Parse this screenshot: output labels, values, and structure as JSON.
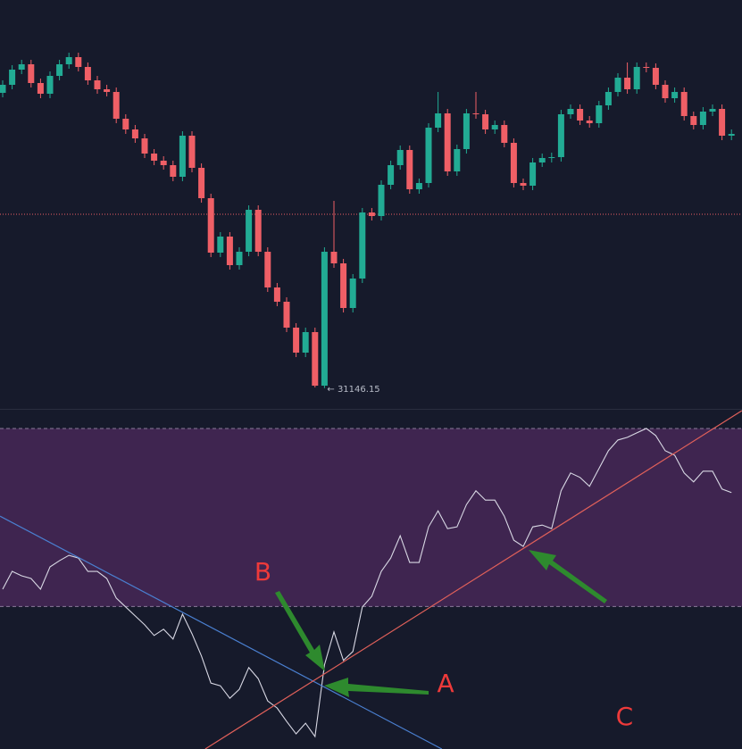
{
  "chart_data": [
    {
      "type": "candlestick",
      "up_color": "#22ab94",
      "down_color": "#ef5f66",
      "ylim": [
        31030,
        33320
      ],
      "price_line": 32120,
      "price_line_color": "#ef5f66",
      "low_label": "← 31146.15",
      "low_index": 34,
      "open": [
        32800,
        32845,
        32930,
        32960,
        32855,
        32795,
        32895,
        32960,
        33000,
        32945,
        32870,
        32820,
        32805,
        32655,
        32595,
        32545,
        32460,
        32420,
        32395,
        32330,
        32560,
        32380,
        32210,
        31905,
        31995,
        31835,
        31910,
        32145,
        31910,
        31710,
        31630,
        31485,
        31345,
        31460,
        31160,
        31910,
        31845,
        31595,
        31760,
        32130,
        32110,
        32285,
        32395,
        32480,
        32260,
        32295,
        32605,
        32685,
        32360,
        32485,
        32685,
        32680,
        32595,
        32620,
        32520,
        32295,
        32280,
        32410,
        32435,
        32440,
        32680,
        32710,
        32645,
        32630,
        32730,
        32805,
        32885,
        32820,
        32945,
        32940,
        32845,
        32770,
        32805,
        32670,
        32620,
        32695,
        32710,
        32560
      ],
      "high": [
        32870,
        32955,
        32985,
        32985,
        32880,
        32920,
        32985,
        33025,
        33025,
        32970,
        32895,
        32845,
        32830,
        32680,
        32620,
        32570,
        32485,
        32445,
        32420,
        32585,
        32585,
        32405,
        32235,
        32020,
        32020,
        31935,
        32170,
        32170,
        31935,
        31735,
        31655,
        31510,
        31485,
        31485,
        31935,
        32195,
        31870,
        31785,
        32155,
        32155,
        32310,
        32420,
        32505,
        32505,
        32320,
        32630,
        32805,
        32710,
        32510,
        32710,
        32805,
        32705,
        32645,
        32645,
        32545,
        32320,
        32435,
        32460,
        32465,
        32705,
        32735,
        32735,
        32670,
        32755,
        32830,
        32910,
        32970,
        32970,
        32970,
        32965,
        32870,
        32830,
        32830,
        32695,
        32720,
        32735,
        32735,
        32595
      ],
      "low": [
        32775,
        32820,
        32905,
        32830,
        32770,
        32770,
        32870,
        32935,
        32920,
        32845,
        32795,
        32780,
        32630,
        32570,
        32520,
        32435,
        32395,
        32370,
        32305,
        32305,
        32355,
        32185,
        31880,
        31880,
        31810,
        31810,
        31885,
        31885,
        31685,
        31605,
        31460,
        31320,
        31320,
        31150,
        31146.15,
        31820,
        31570,
        31570,
        31735,
        32085,
        32085,
        32260,
        32370,
        32235,
        32235,
        32270,
        32580,
        32335,
        32335,
        32460,
        32655,
        32570,
        32570,
        32495,
        32270,
        32255,
        32255,
        32385,
        32410,
        32415,
        32655,
        32620,
        32605,
        32605,
        32705,
        32780,
        32795,
        32795,
        32915,
        32820,
        32745,
        32745,
        32645,
        32595,
        32595,
        32670,
        32535,
        32535
      ],
      "close": [
        32845,
        32930,
        32960,
        32855,
        32795,
        32895,
        32960,
        33000,
        32945,
        32870,
        32820,
        32805,
        32655,
        32595,
        32545,
        32460,
        32420,
        32395,
        32330,
        32560,
        32380,
        32210,
        31905,
        31995,
        31835,
        31910,
        32145,
        31910,
        31710,
        31630,
        31485,
        31345,
        31460,
        31160,
        31910,
        31845,
        31595,
        31760,
        32130,
        32110,
        32285,
        32395,
        32480,
        32260,
        32295,
        32605,
        32685,
        32360,
        32485,
        32685,
        32680,
        32595,
        32620,
        32520,
        32295,
        32280,
        32410,
        32435,
        32440,
        32680,
        32710,
        32645,
        32630,
        32730,
        32805,
        32885,
        32820,
        32945,
        32940,
        32845,
        32770,
        32805,
        32670,
        32620,
        32695,
        32710,
        32560,
        32570
      ]
    },
    {
      "type": "line",
      "color": "#d8d8e4",
      "ylim": [
        -2,
        74.4
      ],
      "bands": [
        30,
        70
      ],
      "band_color": "#3f2550",
      "values": [
        33.9,
        37.9,
        36.9,
        36.3,
        33.9,
        38.9,
        40.3,
        41.5,
        40.9,
        37.9,
        37.9,
        36.3,
        31.9,
        29.9,
        27.9,
        25.9,
        23.5,
        24.9,
        22.7,
        28.3,
        23.9,
        18.9,
        12.8,
        12.2,
        9.4,
        11.4,
        16.3,
        13.8,
        8.8,
        7.2,
        4.2,
        1.4,
        3.8,
        0.8,
        16.9,
        24.3,
        17.9,
        19.9,
        29.9,
        32.3,
        37.9,
        40.9,
        45.9,
        39.9,
        39.9,
        47.9,
        51.5,
        47.5,
        47.9,
        52.9,
        56.0,
        53.9,
        53.9,
        50.3,
        44.9,
        43.5,
        47.9,
        48.3,
        47.5,
        56.0,
        60.0,
        59.0,
        57.0,
        61.0,
        65.0,
        67.4,
        68.0,
        69.0,
        70.0,
        68.4,
        65.0,
        64.0,
        60.0,
        58.0,
        60.4,
        60.4,
        56.4,
        55.6
      ],
      "trendlines": [
        {
          "color": "#4a7fd0",
          "from": [
            -0.28,
            50.3
          ],
          "to": [
            46.4,
            -2.0
          ]
        },
        {
          "color": "#e0605a",
          "from": [
            21.4,
            -2.0
          ],
          "to": [
            78.1,
            74.0
          ]
        }
      ],
      "annotations": [
        {
          "text": "B",
          "at": [
            27.5,
            37.5
          ]
        },
        {
          "text": "A",
          "at": [
            46.8,
            12.4
          ]
        },
        {
          "text": "C",
          "at": [
            65.7,
            5.0
          ]
        }
      ]
    }
  ]
}
